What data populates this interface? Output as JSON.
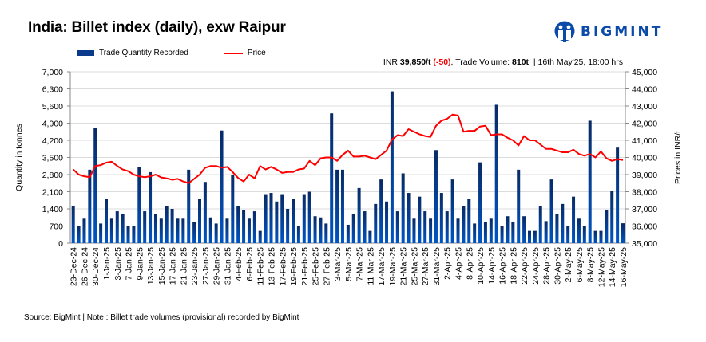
{
  "header": {
    "title": "India: Billet index (daily), exw Raipur",
    "logo_text": "BIGMINT",
    "info": {
      "prefix": "INR ",
      "price": "39,850/t",
      "change": "(-50)",
      "volume_label": ", Trade Volume: ",
      "volume": "810t",
      "timestamp": "  | 16th May'25, 18:00 hrs"
    }
  },
  "footer": {
    "source": "Source: BigMint | Note : Billet trade volumes (provisional) recorded by BigMint"
  },
  "colors": {
    "bar_top": "#082a66",
    "bar_bottom": "#0055c4",
    "price_line": "#ff0000",
    "brand": "#0b4aa8",
    "change": "#e00000"
  },
  "chart_data": {
    "type": "bar+line",
    "legend": {
      "bar": "Trade Quantity Recorded",
      "line": "Price",
      "position": "top"
    },
    "ylabel_left": "Quantity in tonnes",
    "ylabel_right": "Prices in INR/t",
    "ylim_left": [
      0,
      7000
    ],
    "ylim_right": [
      35000,
      45000
    ],
    "yticks_left": [
      "0",
      "700",
      "1,400",
      "2,100",
      "2,800",
      "3,500",
      "4,200",
      "4,900",
      "5,600",
      "6,300",
      "7,000"
    ],
    "yticks_right": [
      "35,000",
      "36,000",
      "37,000",
      "38,000",
      "39,000",
      "40,000",
      "41,000",
      "42,000",
      "43,000",
      "44,000",
      "45,000"
    ],
    "grid": true,
    "x_tick_labels_every_other_bar": [
      "23-Dec-24",
      "26-Dec-24",
      "30-Dec-24",
      "1-Jan-25",
      "3-Jan-25",
      "7-Jan-25",
      "9-Jan-25",
      "13-Jan-25",
      "15-Jan-25",
      "17-Jan-25",
      "21-Jan-25",
      "23-Jan-25",
      "27-Jan-25",
      "29-Jan-25",
      "31-Jan-25",
      "4-Feb-25",
      "6-Feb-25",
      "11-Feb-25",
      "13-Feb-25",
      "17-Feb-25",
      "19-Feb-25",
      "21-Feb-25",
      "25-Feb-25",
      "27-Feb-25",
      "3-Mar-25",
      "5-Mar-25",
      "7-Mar-25",
      "11-Mar-25",
      "17-Mar-25",
      "19-Mar-25",
      "21-Mar-25",
      "25-Mar-25",
      "27-Mar-25",
      "31-Mar-25",
      "2-Apr-25",
      "4-Apr-25",
      "8-Apr-25",
      "10-Apr-25",
      "14-Apr-25",
      "16-Apr-25",
      "18-Apr-25",
      "22-Apr-25",
      "24-Apr-25",
      "28-Apr-25",
      "30-Apr-25",
      "2-May-25",
      "6-May-25",
      "8-May-25",
      "12-May-25",
      "14-May-25",
      "16-May-25"
    ],
    "series": [
      {
        "name": "Trade Quantity Recorded",
        "type": "bar",
        "axis": "left",
        "values": [
          1500,
          700,
          1000,
          3000,
          4700,
          800,
          1800,
          1000,
          1300,
          1200,
          700,
          700,
          3100,
          1300,
          2900,
          1200,
          1000,
          1500,
          1400,
          1000,
          1000,
          3000,
          850,
          1800,
          2500,
          1050,
          800,
          4600,
          1000,
          2800,
          1500,
          1350,
          1000,
          1300,
          500,
          2000,
          2050,
          1700,
          2000,
          1400,
          1800,
          700,
          2000,
          2100,
          1100,
          1050,
          800,
          5300,
          3000,
          3000,
          750,
          1200,
          2250,
          1300,
          500,
          1600,
          2600,
          1700,
          6200,
          1300,
          2850,
          2050,
          1000,
          1900,
          1300,
          1000,
          3800,
          2050,
          1300,
          2600,
          1000,
          1500,
          1800,
          800,
          3300,
          850,
          1000,
          5650,
          700,
          1100,
          850,
          3000,
          1100,
          500,
          500,
          1500,
          900,
          2600,
          1200,
          1600,
          700,
          1900,
          1000,
          700,
          5000,
          500,
          500,
          1350,
          2150,
          3900,
          810
        ]
      },
      {
        "name": "Price",
        "type": "line",
        "axis": "right",
        "values": [
          39300,
          39000,
          38900,
          38850,
          39500,
          39550,
          39700,
          39750,
          39500,
          39300,
          39200,
          39000,
          38900,
          38850,
          38900,
          39000,
          38830,
          38780,
          38700,
          38750,
          38600,
          38500,
          38750,
          39000,
          39400,
          39500,
          39500,
          39400,
          39450,
          39150,
          38800,
          38600,
          39000,
          38780,
          39500,
          39300,
          39450,
          39300,
          39100,
          39150,
          39150,
          39300,
          39350,
          39800,
          39550,
          39950,
          40000,
          40000,
          39800,
          40150,
          40400,
          40050,
          40050,
          40100,
          40000,
          39900,
          40150,
          40400,
          41050,
          41300,
          41250,
          41650,
          41500,
          41350,
          41250,
          41200,
          41850,
          42150,
          42250,
          42500,
          42450,
          41500,
          41550,
          41550,
          41800,
          41850,
          41300,
          41350,
          41350,
          41150,
          41000,
          40700,
          41250,
          41000,
          41000,
          40750,
          40500,
          40500,
          40400,
          40300,
          40300,
          40450,
          40200,
          40100,
          40200,
          40000,
          40350,
          39950,
          39800,
          39900,
          39850
        ]
      }
    ]
  }
}
